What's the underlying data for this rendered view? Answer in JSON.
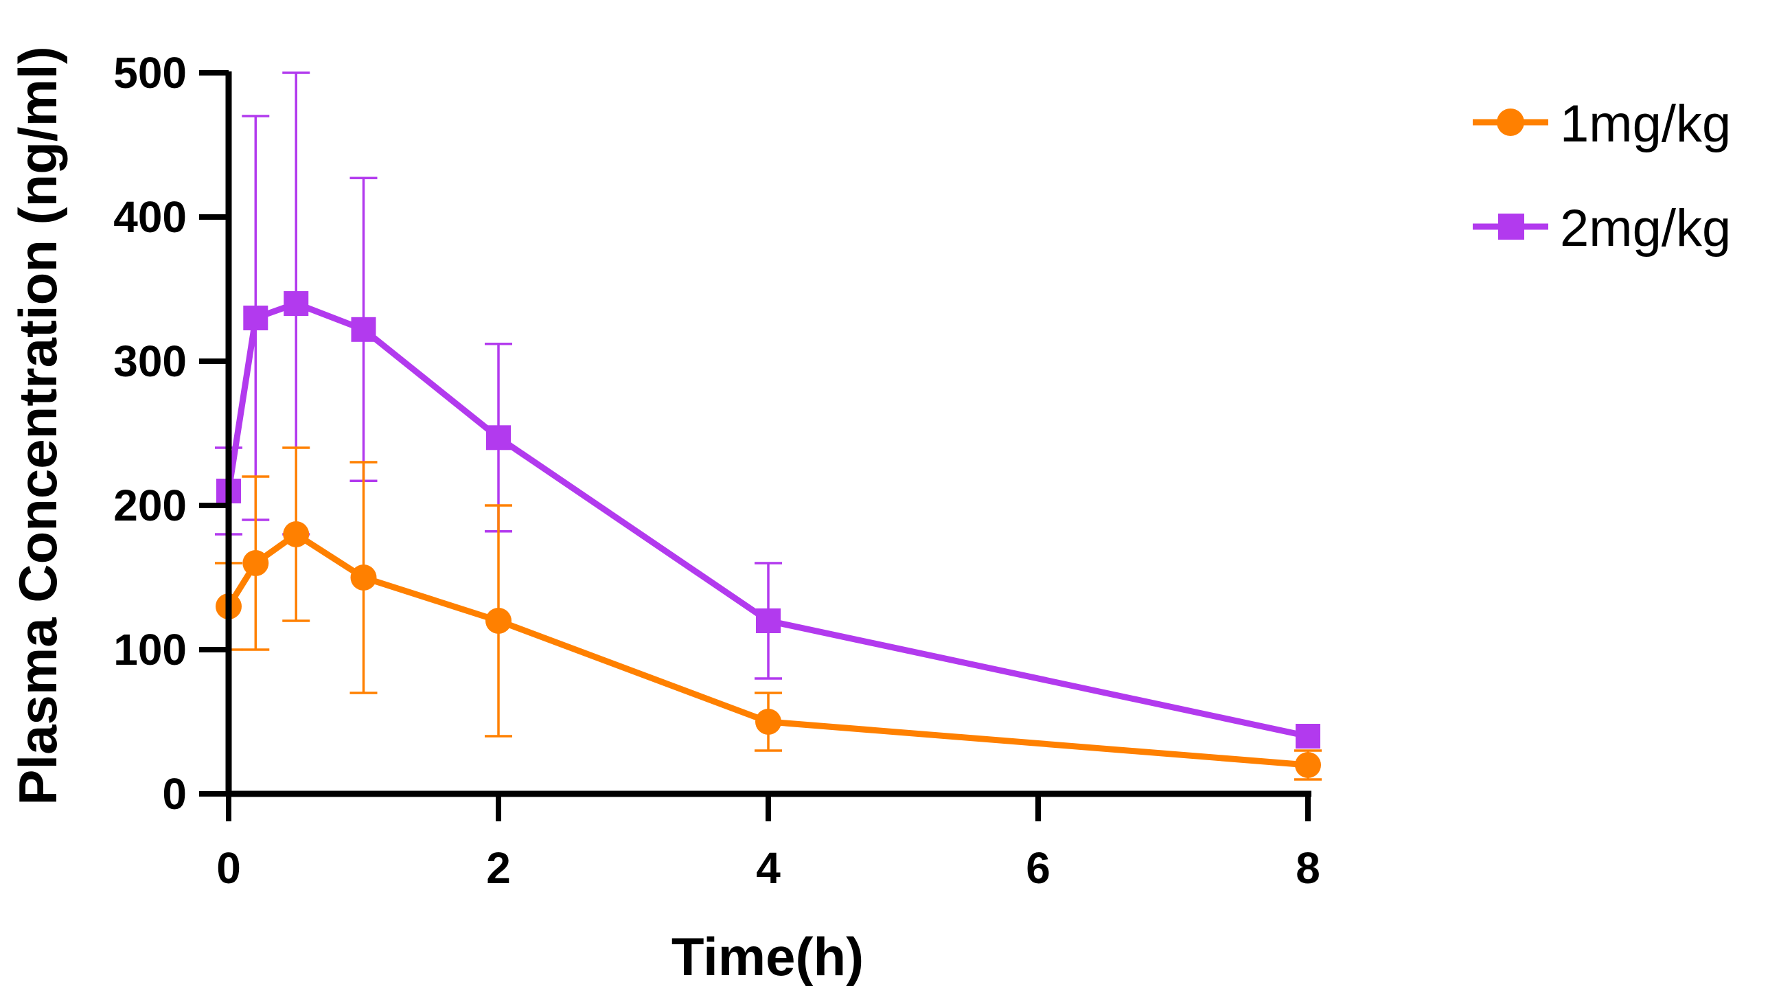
{
  "chart_data": {
    "type": "line",
    "title": "",
    "xlabel": "Time(h)",
    "ylabel": "Plasma Concentration (ng/ml)",
    "xlim": [
      0,
      8
    ],
    "ylim": [
      0,
      500
    ],
    "xticks": [
      0,
      2,
      4,
      6,
      8
    ],
    "yticks": [
      0,
      100,
      200,
      300,
      400,
      500
    ],
    "grid": false,
    "legend_position": "top-right",
    "series": [
      {
        "name": "1mg/kg",
        "color": "#FF8000",
        "marker": "circle",
        "x": [
          0,
          0.2,
          0.5,
          1,
          2,
          4,
          8
        ],
        "y": [
          130,
          160,
          180,
          150,
          120,
          50,
          20
        ],
        "error": [
          30,
          60,
          60,
          80,
          80,
          20,
          10
        ]
      },
      {
        "name": "2mg/kg",
        "color": "#B23AEE",
        "marker": "square",
        "x": [
          0,
          0.2,
          0.5,
          1,
          2,
          4,
          8
        ],
        "y": [
          210,
          330,
          340,
          322,
          247,
          120,
          40
        ],
        "error": [
          30,
          140,
          160,
          105,
          65,
          40,
          0
        ]
      }
    ]
  }
}
